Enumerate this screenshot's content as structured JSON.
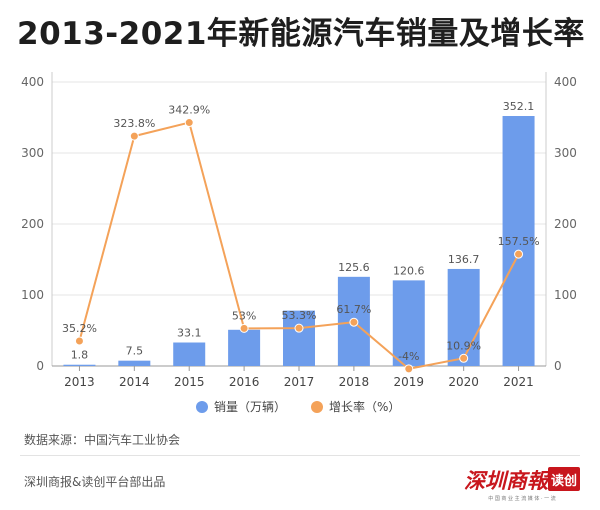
{
  "title": "2013-2021年新能源汽车销量及增长率",
  "chart_data": {
    "type": "bar",
    "categories": [
      "2013",
      "2014",
      "2015",
      "2016",
      "2017",
      "2018",
      "2019",
      "2020",
      "2021"
    ],
    "series": [
      {
        "name": "销量（万辆）",
        "type": "bar",
        "axis": "left",
        "values": [
          1.8,
          7.5,
          33.1,
          51.0,
          78.0,
          125.6,
          120.6,
          136.7,
          352.1
        ],
        "labels": [
          "1.8",
          "7.5",
          "33.1",
          "",
          "",
          "125.6",
          "120.6",
          "136.7",
          "352.1"
        ],
        "color": "#6d9ceb"
      },
      {
        "name": "增长率（%）",
        "type": "line",
        "axis": "right",
        "values": [
          35.2,
          323.8,
          342.9,
          53,
          53.3,
          61.7,
          -4,
          10.9,
          157.5
        ],
        "labels": [
          "35.2%",
          "323.8%",
          "342.9%",
          "53%",
          "53.3%",
          "61.7%",
          "-4%",
          "10.9%",
          "157.5%"
        ],
        "color": "#f4a259"
      }
    ],
    "left_axis": {
      "ylim": [
        0,
        400
      ],
      "ticks": [
        "0",
        "100",
        "200",
        "300",
        "400"
      ]
    },
    "right_axis": {
      "ylim": [
        0,
        400
      ],
      "ticks": [
        "0",
        "100",
        "200",
        "300",
        "400"
      ]
    },
    "grid": true,
    "legend_position": "bottom"
  },
  "source_text": "数据来源：中国汽车工业协会",
  "footer_text": "深圳商报&读创平台部出品",
  "logo": {
    "main_text": "深圳商報",
    "badge_text": "读创",
    "tagline": "中 国 商 业 主 流 媒 体 · 一 流",
    "primary_color": "#c8161d"
  }
}
